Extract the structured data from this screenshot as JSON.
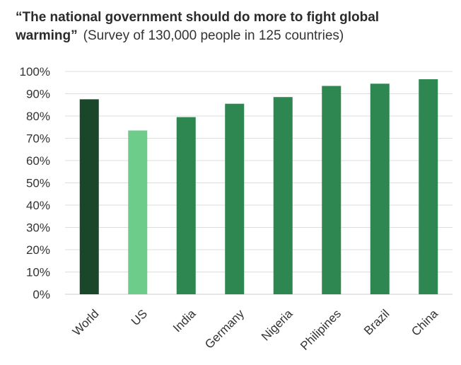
{
  "chart_data": {
    "type": "bar",
    "title": "“The national government should do more to fight global warming”",
    "subtitle": "(Survey of 130,000 people in 125 countries)",
    "categories": [
      "World",
      "US",
      "India",
      "Germany",
      "Nigeria",
      "Philipines",
      "Brazil",
      "China"
    ],
    "values": [
      87.5,
      73.5,
      79.5,
      85.5,
      88.5,
      93.5,
      94.5,
      96.5
    ],
    "colors": [
      "#1a4629",
      "#6dcc8a",
      "#2e8650",
      "#2e8650",
      "#2e8650",
      "#2e8650",
      "#2e8650",
      "#2e8650"
    ],
    "ylim": [
      0,
      100
    ],
    "yticks": [
      0,
      10,
      20,
      30,
      40,
      50,
      60,
      70,
      80,
      90,
      100
    ],
    "ytick_labels": [
      "0%",
      "10%",
      "20%",
      "30%",
      "40%",
      "50%",
      "60%",
      "70%",
      "80%",
      "90%",
      "100%"
    ],
    "xlabel": "",
    "ylabel": "",
    "grid": true,
    "gridline_color": "#dddddd"
  }
}
